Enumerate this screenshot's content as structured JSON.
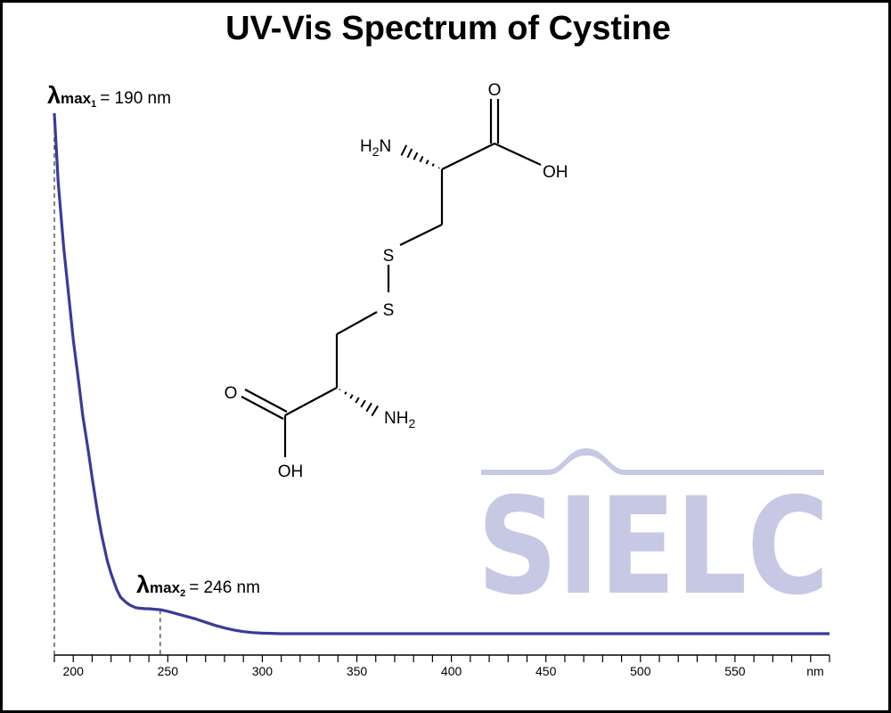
{
  "title": "UV-Vis Spectrum of Cystine",
  "watermark": "SIELC",
  "colors": {
    "line": "#3a3a9a",
    "watermark": "#c6c8e4",
    "axis": "#000000"
  },
  "annotations": [
    {
      "symbol": "λ",
      "text": "max",
      "sub": "1",
      "value": "= 190 nm",
      "x": 190
    },
    {
      "symbol": "λ",
      "text": "max",
      "sub": "2",
      "value": "= 246 nm",
      "x": 246
    }
  ],
  "molecule": {
    "atoms": [
      "H2N",
      "O",
      "OH",
      "S",
      "S",
      "O",
      "NH2",
      "OH"
    ]
  },
  "chart_data": {
    "type": "line",
    "title": "UV-Vis Spectrum of Cystine",
    "xlabel": "nm",
    "ylabel": "",
    "xlim": [
      190,
      600
    ],
    "ylim": [
      0,
      1
    ],
    "xticks_labeled": [
      "200",
      "250",
      "300",
      "350",
      "400",
      "450",
      "500",
      "550"
    ],
    "x_unit_label": "nm",
    "grid": false,
    "series": [
      {
        "x": [
          190,
          192,
          195,
          198,
          200,
          203,
          205,
          208,
          210,
          213,
          215,
          218,
          220,
          223,
          225,
          228,
          230,
          233,
          235,
          238,
          240,
          243,
          246,
          250,
          255,
          260,
          265,
          270,
          275,
          280,
          285,
          290,
          295,
          300,
          310,
          320,
          340,
          360,
          380,
          400,
          450,
          500,
          550,
          600
        ],
        "y": [
          1.0,
          0.87,
          0.74,
          0.635,
          0.565,
          0.48,
          0.42,
          0.35,
          0.3,
          0.23,
          0.19,
          0.14,
          0.115,
          0.085,
          0.07,
          0.06,
          0.055,
          0.05,
          0.049,
          0.048,
          0.048,
          0.047,
          0.046,
          0.043,
          0.038,
          0.033,
          0.028,
          0.022,
          0.016,
          0.011,
          0.007,
          0.004,
          0.002,
          0.001,
          0.0,
          0.0,
          0.0,
          0.0,
          0.0,
          0.0,
          0.0,
          0.0,
          0.0,
          0.0
        ]
      }
    ]
  }
}
